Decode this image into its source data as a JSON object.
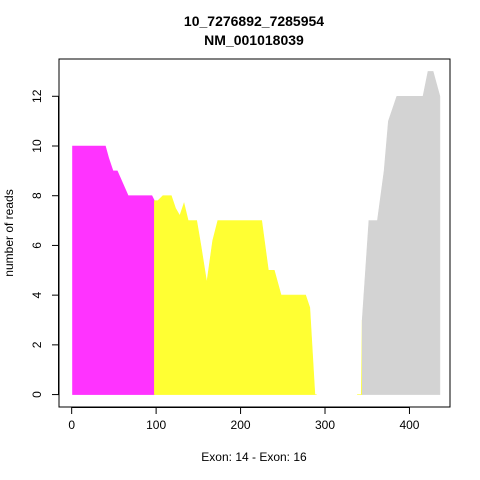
{
  "chart_data": {
    "type": "area",
    "title": "10_7276892_7285954",
    "subtitle": "NM_001018039",
    "xlabel": "Exon: 14 - Exon: 16",
    "ylabel": "number of reads",
    "xlim": [
      -15,
      448
    ],
    "ylim": [
      -0.5,
      13.5
    ],
    "xticks": [
      0,
      100,
      200,
      300,
      400
    ],
    "yticks": [
      0,
      2,
      4,
      6,
      8,
      10,
      12
    ],
    "grid": false,
    "legend": "none",
    "series": [
      {
        "color": "#ff33ff",
        "x": [
          1,
          40,
          44,
          49,
          54,
          67,
          95,
          98,
          98
        ],
        "y": [
          10,
          10,
          9.5,
          9,
          9,
          8,
          8,
          7.8,
          7.8
        ]
      },
      {
        "color": "#ffff33",
        "x": [
          98,
          102,
          108,
          118,
          123,
          128,
          133,
          138,
          148,
          153,
          160,
          167,
          173,
          225,
          233,
          240,
          248,
          277,
          282,
          288,
          290
        ],
        "y": [
          7.8,
          7.8,
          8,
          8,
          7.5,
          7.2,
          7.7,
          7,
          7,
          6,
          4.5,
          6.2,
          7,
          7,
          5,
          5,
          4,
          4,
          3.5,
          0,
          0
        ],
        "x2": [
          338,
          343,
          344
        ],
        "y2": [
          0,
          0,
          3
        ]
      },
      {
        "color": "#d3d3d3",
        "x": [
          344,
          352,
          356,
          362,
          370,
          375,
          380,
          385,
          392,
          416,
          422,
          428,
          436
        ],
        "y": [
          3,
          7,
          7,
          7,
          9,
          11,
          11.5,
          12,
          12,
          12,
          13,
          13,
          12
        ]
      }
    ]
  }
}
